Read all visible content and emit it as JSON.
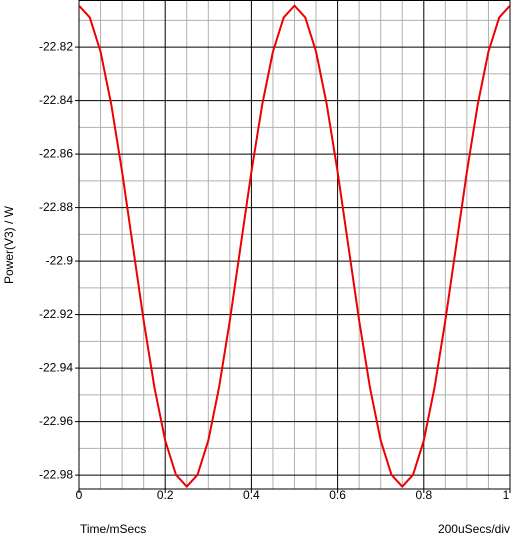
{
  "chart_data": {
    "type": "line",
    "ylabel": "Power(V3) / W",
    "xlabel": "Time/mSecs",
    "xscale_note": "200uSecs/div",
    "x": [
      0,
      0.025,
      0.05,
      0.075,
      0.1,
      0.125,
      0.15,
      0.175,
      0.2,
      0.225,
      0.25,
      0.275,
      0.3,
      0.325,
      0.35,
      0.375,
      0.4,
      0.425,
      0.45,
      0.475,
      0.5,
      0.525,
      0.55,
      0.575,
      0.6,
      0.625,
      0.65,
      0.675,
      0.7,
      0.725,
      0.75,
      0.775,
      0.8,
      0.825,
      0.85,
      0.875,
      0.9,
      0.925,
      0.95,
      0.975,
      1
    ],
    "series": [
      {
        "color": "#ee0000",
        "values": [
          -22.8045,
          -22.8089,
          -22.8217,
          -22.8416,
          -22.8666,
          -22.8944,
          -22.9222,
          -22.9472,
          -22.9671,
          -22.9799,
          -22.9843,
          -22.9799,
          -22.9671,
          -22.9472,
          -22.9222,
          -22.8944,
          -22.8666,
          -22.8416,
          -22.8217,
          -22.8089,
          -22.8045,
          -22.8089,
          -22.8217,
          -22.8416,
          -22.8666,
          -22.8944,
          -22.9222,
          -22.9472,
          -22.9671,
          -22.9799,
          -22.9843,
          -22.9799,
          -22.9671,
          -22.9472,
          -22.9222,
          -22.8944,
          -22.8666,
          -22.8416,
          -22.8217,
          -22.8089,
          -22.8045
        ]
      }
    ],
    "xlim": [
      0,
      1
    ],
    "ylim": [
      -22.9852,
      -22.8024
    ],
    "xticks": [
      0,
      0.2,
      0.4,
      0.6,
      0.8,
      1
    ],
    "yticks": [
      -22.82,
      -22.84,
      -22.86,
      -22.88,
      -22.9,
      -22.92,
      -22.94,
      -22.96,
      -22.98
    ],
    "xminorticks": [
      0.05,
      0.1,
      0.15,
      0.25,
      0.3,
      0.35,
      0.45,
      0.5,
      0.55,
      0.65,
      0.7,
      0.75,
      0.85,
      0.9,
      0.95
    ],
    "yminorticks": [
      -22.81,
      -22.83,
      -22.85,
      -22.87,
      -22.89,
      -22.91,
      -22.93,
      -22.95,
      -22.97
    ],
    "grid": true
  }
}
